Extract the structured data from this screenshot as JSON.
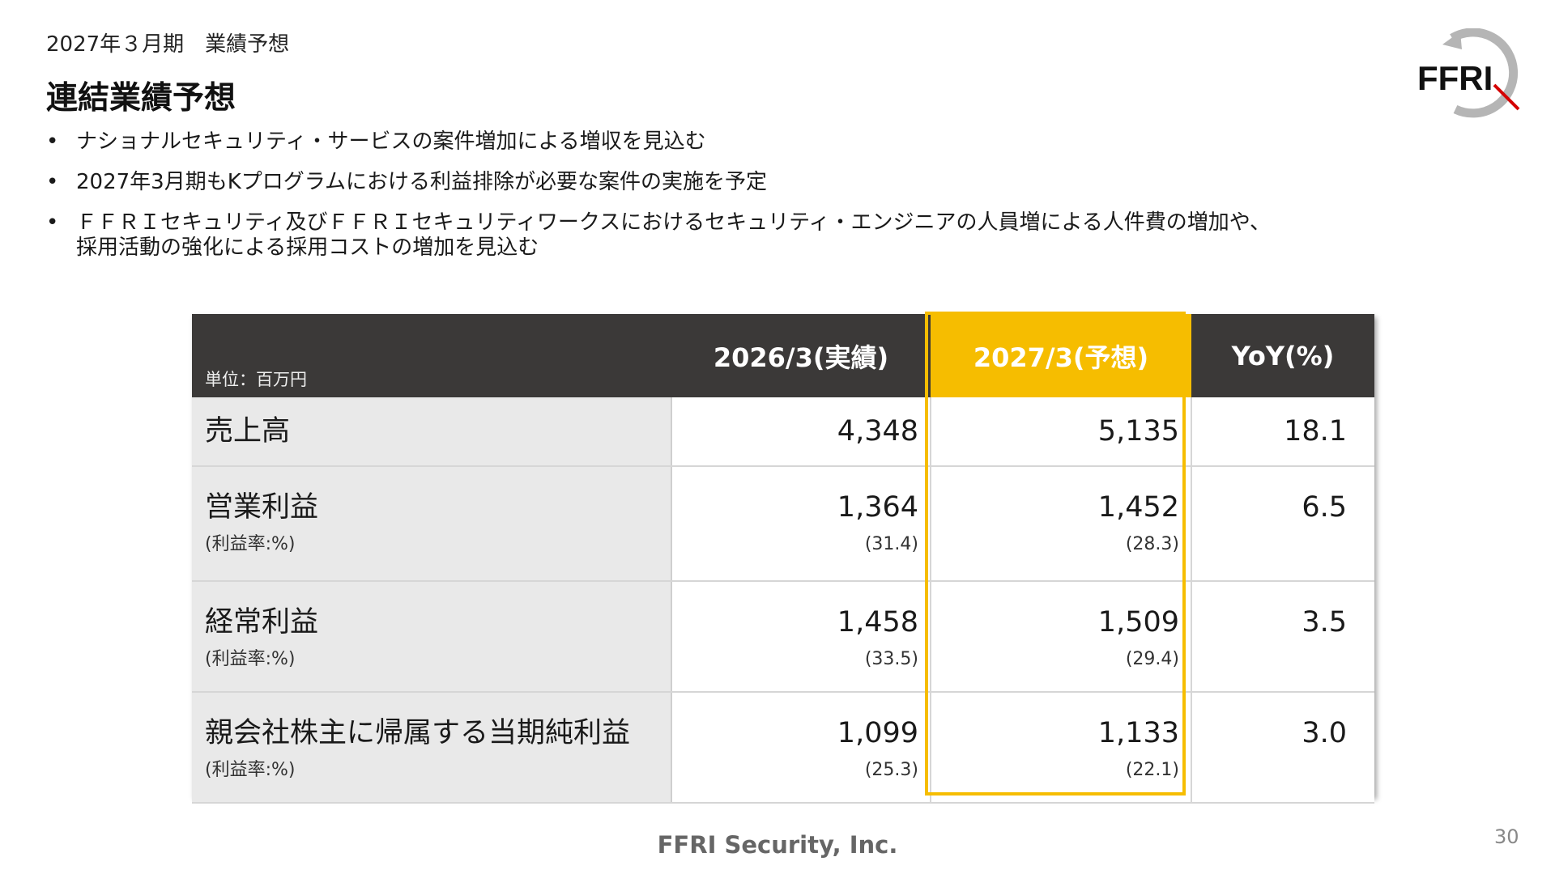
{
  "header": {
    "subtitle": "2027年３月期　業績予想",
    "title": "連結業績予想"
  },
  "logo": {
    "text": "FFRI",
    "icon": "ffri-logo-icon"
  },
  "bullets": [
    {
      "lines": [
        "ナショナルセキュリティ・サービスの案件増加による増収を見込む"
      ]
    },
    {
      "lines": [
        "2027年3月期もKプログラムにおける利益排除が必要な案件の実施を予定"
      ]
    },
    {
      "lines": [
        "ＦＦＲＩセキュリティ及びＦＦＲＩセキュリティワークスにおけるセキュリティ・エンジニアの人員増による人件費の増加や、",
        "採用活動の強化による採用コストの増加を見込む"
      ]
    }
  ],
  "bullet_symbol": "•",
  "table": {
    "unit_label": "単位：百万円",
    "columns": [
      "2026/3(実績)",
      "2027/3(予想)",
      "YoY(%)"
    ],
    "rows": [
      {
        "label": "売上高",
        "sublabel": "",
        "actual": "4,348",
        "actual_sub": "",
        "forecast": "5,135",
        "forecast_sub": "",
        "yoy": "18.1"
      },
      {
        "label": "営業利益",
        "sublabel": "(利益率:%)",
        "actual": "1,364",
        "actual_sub": "(31.4)",
        "forecast": "1,452",
        "forecast_sub": "(28.3)",
        "yoy": "6.5"
      },
      {
        "label": "経常利益",
        "sublabel": "(利益率:%)",
        "actual": "1,458",
        "actual_sub": "(33.5)",
        "forecast": "1,509",
        "forecast_sub": "(29.4)",
        "yoy": "3.5"
      },
      {
        "label": "親会社株主に帰属する当期純利益",
        "sublabel": "(利益率:%)",
        "actual": "1,099",
        "actual_sub": "(25.3)",
        "forecast": "1,133",
        "forecast_sub": "(22.1)",
        "yoy": "3.0"
      }
    ],
    "header_bg": "#3b3938",
    "highlight_color": "#f6bd00"
  },
  "footer": {
    "company": "FFRI Security, Inc.",
    "page_number": "30"
  }
}
